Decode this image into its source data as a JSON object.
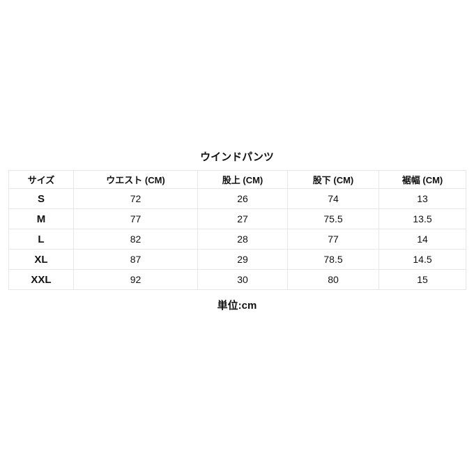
{
  "title": "ウインドパンツ",
  "table": {
    "headers": [
      "サイズ",
      "ウエスト (CM)",
      "股上 (CM)",
      "股下 (CM)",
      "裾幅 (CM)"
    ],
    "rows": [
      [
        "S",
        "72",
        "26",
        "74",
        "13"
      ],
      [
        "M",
        "77",
        "27",
        "75.5",
        "13.5"
      ],
      [
        "L",
        "82",
        "28",
        "77",
        "14"
      ],
      [
        "XL",
        "87",
        "29",
        "78.5",
        "14.5"
      ],
      [
        "XXL",
        "92",
        "30",
        "80",
        "15"
      ]
    ]
  },
  "unit": "単位:cm"
}
